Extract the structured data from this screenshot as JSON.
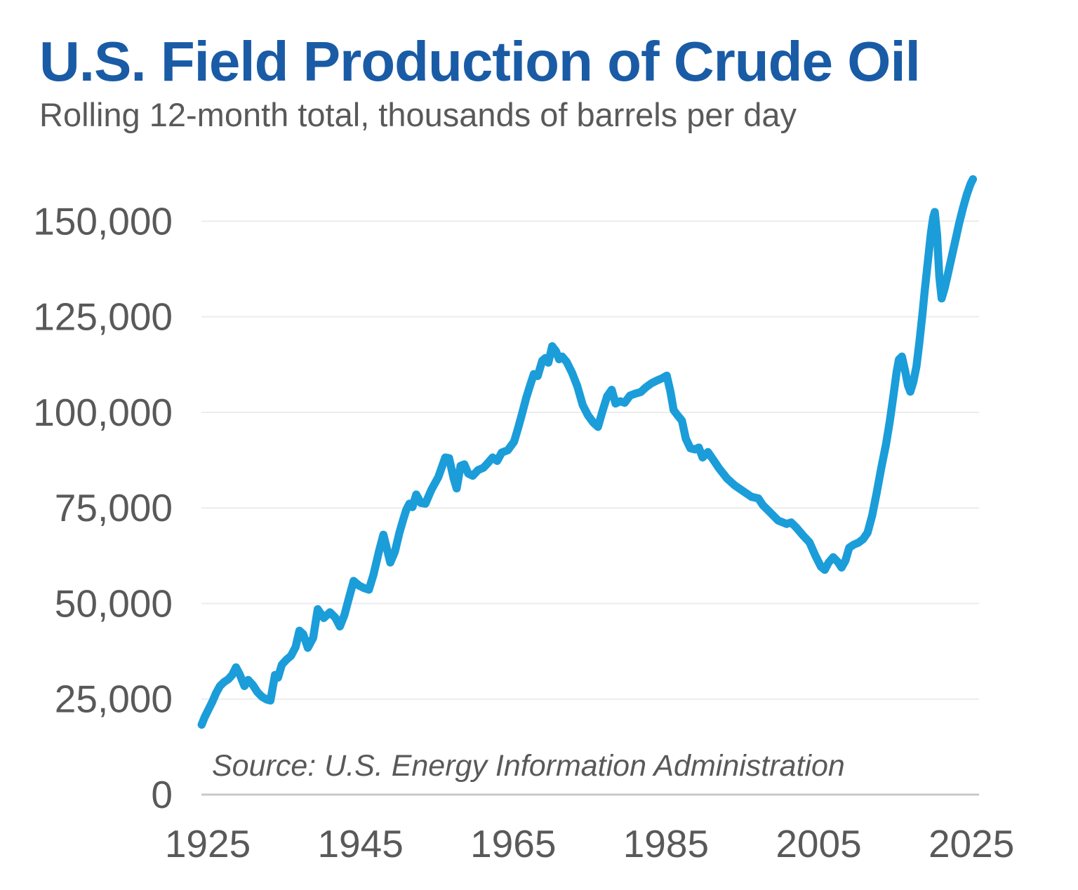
{
  "header": {
    "title": "U.S. Field Production of Crude Oil",
    "subtitle": "Rolling 12-month total, thousands of barrels per day",
    "title_color": "#1A5BA6",
    "subtitle_color": "#595959"
  },
  "source_note": "Source: U.S. Energy Information Administration",
  "chart_data": {
    "type": "line",
    "title": "U.S. Field Production of Crude Oil",
    "subtitle": "Rolling 12-month total, thousands of barrels per day",
    "xlabel": "",
    "ylabel": "thousands of barrels per day",
    "legend": "none",
    "grid": "horizontal-only",
    "line_color": "#1B9DD9",
    "grid_color": "#ECECEC",
    "axis_line_color": "#C8C8C8",
    "tick_color": "#595959",
    "source_color": "#595959",
    "xlim": [
      1924.17,
      2026.0
    ],
    "ylim": [
      0,
      162000
    ],
    "x_ticks": [
      {
        "value": 1925,
        "label": "1925"
      },
      {
        "value": 1945,
        "label": "1945"
      },
      {
        "value": 1965,
        "label": "1965"
      },
      {
        "value": 1985,
        "label": "1985"
      },
      {
        "value": 2005,
        "label": "2005"
      },
      {
        "value": 2025,
        "label": "2025"
      }
    ],
    "y_ticks": [
      {
        "value": 0,
        "label": "0"
      },
      {
        "value": 25000,
        "label": "25,000"
      },
      {
        "value": 50000,
        "label": "50,000"
      },
      {
        "value": 75000,
        "label": "75,000"
      },
      {
        "value": 100000,
        "label": "100,000"
      },
      {
        "value": 125000,
        "label": "125,000"
      },
      {
        "value": 150000,
        "label": "150,000"
      }
    ],
    "series": [
      {
        "name": "U.S. field production of crude oil, rolling 12-month total",
        "points": [
          [
            1924.2,
            18300
          ],
          [
            1924.6,
            20300
          ],
          [
            1925.1,
            22300
          ],
          [
            1925.6,
            24300
          ],
          [
            1926.1,
            26600
          ],
          [
            1926.6,
            28400
          ],
          [
            1927.1,
            29400
          ],
          [
            1927.7,
            30200
          ],
          [
            1928.2,
            31300
          ],
          [
            1928.7,
            33300
          ],
          [
            1929.2,
            31400
          ],
          [
            1929.8,
            28400
          ],
          [
            1930.3,
            30000
          ],
          [
            1930.9,
            28700
          ],
          [
            1931.5,
            26800
          ],
          [
            1932.1,
            25600
          ],
          [
            1932.7,
            24900
          ],
          [
            1933.2,
            24600
          ],
          [
            1933.8,
            31300
          ],
          [
            1934.2,
            30600
          ],
          [
            1934.7,
            34000
          ],
          [
            1935.3,
            35300
          ],
          [
            1935.9,
            36300
          ],
          [
            1936.5,
            38600
          ],
          [
            1937.0,
            42900
          ],
          [
            1937.5,
            42000
          ],
          [
            1938.1,
            38400
          ],
          [
            1938.8,
            41000
          ],
          [
            1939.4,
            48500
          ],
          [
            1940.2,
            46200
          ],
          [
            1941.0,
            47700
          ],
          [
            1941.7,
            46300
          ],
          [
            1942.3,
            44000
          ],
          [
            1942.9,
            47000
          ],
          [
            1943.5,
            51500
          ],
          [
            1944.1,
            55900
          ],
          [
            1944.8,
            54700
          ],
          [
            1945.5,
            54000
          ],
          [
            1946.1,
            53600
          ],
          [
            1946.7,
            57500
          ],
          [
            1947.4,
            63500
          ],
          [
            1948.0,
            68000
          ],
          [
            1948.5,
            64000
          ],
          [
            1948.9,
            60700
          ],
          [
            1949.5,
            63500
          ],
          [
            1950.1,
            68500
          ],
          [
            1950.6,
            72000
          ],
          [
            1951.0,
            74500
          ],
          [
            1951.4,
            76100
          ],
          [
            1951.8,
            75200
          ],
          [
            1952.3,
            78500
          ],
          [
            1952.9,
            76300
          ],
          [
            1953.5,
            76100
          ],
          [
            1954.3,
            79800
          ],
          [
            1955.2,
            83100
          ],
          [
            1956.1,
            88200
          ],
          [
            1956.6,
            88000
          ],
          [
            1957.2,
            82700
          ],
          [
            1957.6,
            80100
          ],
          [
            1958.1,
            86000
          ],
          [
            1958.6,
            86400
          ],
          [
            1959.1,
            84000
          ],
          [
            1959.7,
            83400
          ],
          [
            1960.4,
            84900
          ],
          [
            1961.1,
            85500
          ],
          [
            1961.7,
            86800
          ],
          [
            1962.3,
            88200
          ],
          [
            1962.9,
            87300
          ],
          [
            1963.5,
            89500
          ],
          [
            1964.3,
            90100
          ],
          [
            1965.1,
            92300
          ],
          [
            1965.6,
            95600
          ],
          [
            1966.1,
            99200
          ],
          [
            1966.7,
            103800
          ],
          [
            1967.2,
            107000
          ],
          [
            1967.7,
            110000
          ],
          [
            1968.2,
            109500
          ],
          [
            1968.8,
            113500
          ],
          [
            1969.2,
            114200
          ],
          [
            1969.6,
            113000
          ],
          [
            1970.1,
            117300
          ],
          [
            1970.6,
            116000
          ],
          [
            1971.0,
            113900
          ],
          [
            1971.4,
            114600
          ],
          [
            1972.0,
            113200
          ],
          [
            1972.7,
            110400
          ],
          [
            1973.4,
            106800
          ],
          [
            1974.1,
            101900
          ],
          [
            1974.8,
            99200
          ],
          [
            1975.5,
            97300
          ],
          [
            1976.1,
            96200
          ],
          [
            1976.7,
            100400
          ],
          [
            1977.3,
            104200
          ],
          [
            1977.9,
            105900
          ],
          [
            1978.4,
            102300
          ],
          [
            1979.0,
            102900
          ],
          [
            1979.6,
            102500
          ],
          [
            1980.3,
            104400
          ],
          [
            1981.0,
            104900
          ],
          [
            1981.7,
            105300
          ],
          [
            1982.4,
            106600
          ],
          [
            1983.1,
            107600
          ],
          [
            1983.8,
            108300
          ],
          [
            1984.5,
            108900
          ],
          [
            1985.1,
            109600
          ],
          [
            1985.6,
            105300
          ],
          [
            1986.0,
            100600
          ],
          [
            1986.5,
            99300
          ],
          [
            1987.1,
            97800
          ],
          [
            1987.6,
            93100
          ],
          [
            1988.2,
            90600
          ],
          [
            1988.8,
            90300
          ],
          [
            1989.3,
            90800
          ],
          [
            1989.8,
            88200
          ],
          [
            1990.5,
            89600
          ],
          [
            1991.2,
            87600
          ],
          [
            1991.9,
            85500
          ],
          [
            1993.0,
            82700
          ],
          [
            1994.0,
            80900
          ],
          [
            1995.1,
            79400
          ],
          [
            1996.2,
            77900
          ],
          [
            1997.1,
            77500
          ],
          [
            1997.7,
            75700
          ],
          [
            1998.6,
            73900
          ],
          [
            1999.7,
            71700
          ],
          [
            2000.8,
            70800
          ],
          [
            2001.4,
            71200
          ],
          [
            2002.1,
            69800
          ],
          [
            2002.9,
            67900
          ],
          [
            2003.8,
            66000
          ],
          [
            2004.6,
            62400
          ],
          [
            2005.3,
            59600
          ],
          [
            2005.8,
            58800
          ],
          [
            2006.3,
            60700
          ],
          [
            2006.9,
            62100
          ],
          [
            2007.5,
            60900
          ],
          [
            2008.0,
            59400
          ],
          [
            2008.5,
            61200
          ],
          [
            2009.0,
            64600
          ],
          [
            2009.6,
            65400
          ],
          [
            2010.2,
            65900
          ],
          [
            2010.8,
            66800
          ],
          [
            2011.4,
            68500
          ],
          [
            2012.0,
            73000
          ],
          [
            2012.6,
            79000
          ],
          [
            2013.2,
            85500
          ],
          [
            2013.8,
            91500
          ],
          [
            2014.3,
            97500
          ],
          [
            2014.8,
            104500
          ],
          [
            2015.2,
            110500
          ],
          [
            2015.5,
            113800
          ],
          [
            2015.9,
            114600
          ],
          [
            2016.3,
            111000
          ],
          [
            2016.7,
            107000
          ],
          [
            2017.0,
            105400
          ],
          [
            2017.4,
            108000
          ],
          [
            2017.8,
            112000
          ],
          [
            2018.2,
            118500
          ],
          [
            2018.6,
            126000
          ],
          [
            2018.9,
            132000
          ],
          [
            2019.3,
            139500
          ],
          [
            2019.7,
            147000
          ],
          [
            2020.0,
            151000
          ],
          [
            2020.2,
            152400
          ],
          [
            2020.5,
            146500
          ],
          [
            2020.8,
            135500
          ],
          [
            2021.1,
            129800
          ],
          [
            2021.5,
            132500
          ],
          [
            2021.9,
            136000
          ],
          [
            2022.4,
            140500
          ],
          [
            2022.9,
            145000
          ],
          [
            2023.4,
            149500
          ],
          [
            2023.9,
            153500
          ],
          [
            2024.4,
            157000
          ],
          [
            2024.9,
            159800
          ],
          [
            2025.2,
            161000
          ]
        ]
      }
    ]
  }
}
